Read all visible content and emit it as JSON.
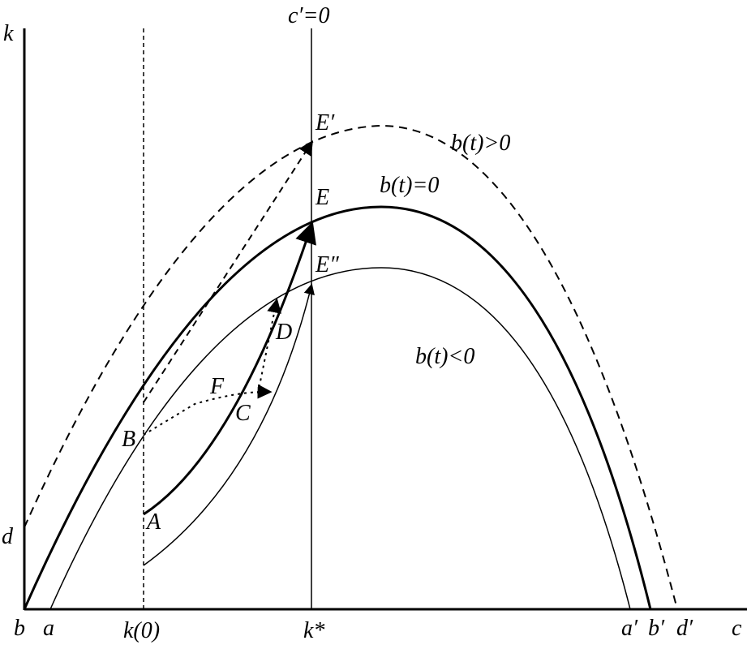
{
  "diagram": {
    "vertical_axis_label": "k",
    "horizontal_axis_label": "c",
    "vertical_line_label": "c′=0",
    "curve_labels": {
      "upper": "b(t)>0",
      "middle": "b(t)=0",
      "lower": "b(t)<0"
    },
    "point_labels": {
      "E_prime": "E′",
      "E": "E",
      "E_double_prime": "E″",
      "D": "D",
      "F": "F",
      "C": "C",
      "B": "B",
      "A": "A"
    },
    "axis_labels": {
      "d": "d",
      "b": "b",
      "a": "a",
      "k0": "k(0)",
      "kstar": "k*",
      "a_prime": "a′",
      "b_prime": "b′",
      "d_prime": "d′"
    }
  }
}
